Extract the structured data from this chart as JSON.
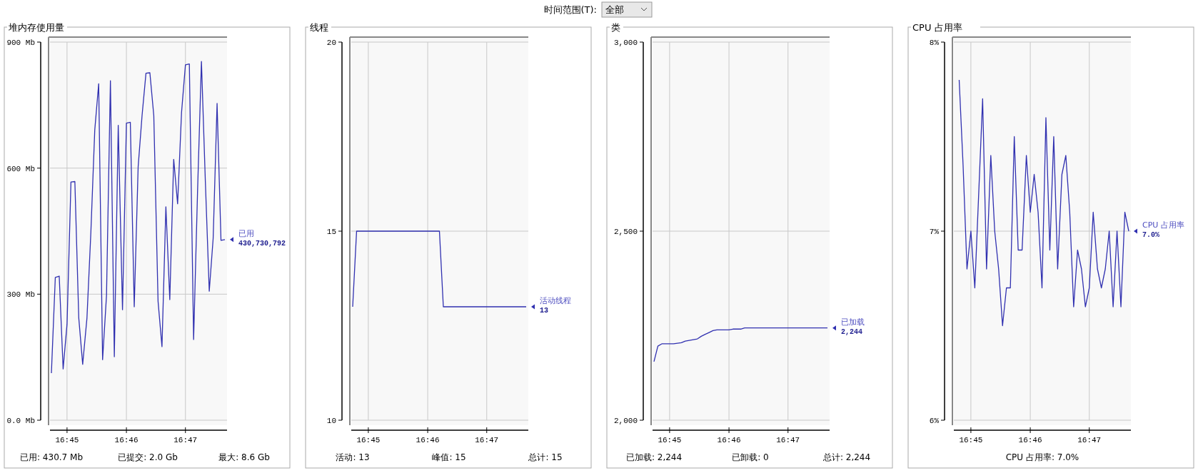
{
  "chart_data": [
    {
      "type": "other",
      "annotations": [
        "时间范围(T):",
        "全部"
      ]
    },
    {
      "type": "line",
      "title": "堆内存使用量",
      "xlim": [
        16.7452,
        16.795
      ],
      "xticks": [
        {
          "value": 16.75,
          "label": "16:45"
        },
        {
          "value": 16.7667,
          "label": "16:46"
        },
        {
          "value": 16.7833,
          "label": "16:47"
        }
      ],
      "ylim": [
        0,
        900
      ],
      "yticks": [
        {
          "value": 0,
          "label": "0.0 Mb"
        },
        {
          "value": 300,
          "label": "300 Mb"
        },
        {
          "value": 600,
          "label": "600 Mb"
        },
        {
          "value": 900,
          "label": "900 Mb"
        }
      ],
      "grid": true,
      "series": [
        {
          "name": "已用",
          "color": "#3030b0",
          "x": [
            16.7456,
            16.7467,
            16.7478,
            16.7489,
            16.75,
            16.7511,
            16.7522,
            16.7533,
            16.7544,
            16.7556,
            16.7567,
            16.7578,
            16.7589,
            16.76,
            16.7611,
            16.7622,
            16.7633,
            16.7644,
            16.7656,
            16.7667,
            16.7678,
            16.7689,
            16.77,
            16.7711,
            16.7722,
            16.7733,
            16.7744,
            16.7756,
            16.7767,
            16.7778,
            16.7789,
            16.78,
            16.7811,
            16.7822,
            16.7833,
            16.7844,
            16.7856,
            16.7867,
            16.7878,
            16.7889,
            16.79,
            16.7911,
            16.7922,
            16.7933,
            16.7944
          ],
          "values": [
            112,
            340,
            343,
            122,
            229,
            567,
            568,
            243,
            133,
            243,
            447,
            691,
            801,
            144,
            297,
            808,
            151,
            702,
            263,
            707,
            709,
            270,
            603,
            725,
            826,
            827,
            725,
            283,
            175,
            508,
            287,
            621,
            515,
            732,
            846,
            848,
            192,
            542,
            854,
            569,
            307,
            433,
            754,
            428,
            430
          ]
        }
      ],
      "annotations": [
        "430,730,792",
        "已用:  430.7  Mb",
        "已提交:  2.0  Gb",
        "最大:  8.6  Gb"
      ]
    },
    {
      "type": "line",
      "title": "线程",
      "xlim": [
        16.7452,
        16.795
      ],
      "xticks": [
        {
          "value": 16.75,
          "label": "16:45"
        },
        {
          "value": 16.7667,
          "label": "16:46"
        },
        {
          "value": 16.7833,
          "label": "16:47"
        }
      ],
      "ylim": [
        10,
        20
      ],
      "yticks": [
        10,
        15,
        20
      ],
      "grid": true,
      "series": [
        {
          "name": "活动线程",
          "color": "#3030b0",
          "x": [
            16.7456,
            16.7467,
            16.77,
            16.7711,
            16.7944
          ],
          "values": [
            13,
            15,
            15,
            13,
            13
          ]
        }
      ],
      "annotations": [
        "13",
        "活动:  13",
        "峰值:  15",
        "总计:  15"
      ]
    },
    {
      "type": "line",
      "title": "类",
      "xlim": [
        16.7452,
        16.795
      ],
      "xticks": [
        {
          "value": 16.75,
          "label": "16:45"
        },
        {
          "value": 16.7667,
          "label": "16:46"
        },
        {
          "value": 16.7833,
          "label": "16:47"
        }
      ],
      "ylim": [
        2000,
        3000
      ],
      "yticks": [
        {
          "value": 2000,
          "label": "2,000"
        },
        {
          "value": 2500,
          "label": "2,500"
        },
        {
          "value": 3000,
          "label": "3,000"
        }
      ],
      "grid": true,
      "series": [
        {
          "name": "已加载",
          "color": "#3030b0",
          "x": [
            16.7456,
            16.7467,
            16.7478,
            16.7511,
            16.7533,
            16.7544,
            16.7578,
            16.7589,
            16.76,
            16.7611,
            16.7622,
            16.7633,
            16.7667,
            16.7678,
            16.77,
            16.7711,
            16.7944
          ],
          "values": [
            2155,
            2196,
            2202,
            2202,
            2205,
            2209,
            2215,
            2222,
            2227,
            2232,
            2237,
            2239,
            2239,
            2241,
            2241,
            2244,
            2244
          ]
        }
      ],
      "annotations": [
        "2,244",
        "已加载:  2,244",
        "已卸载:  0",
        "总计:  2,244"
      ]
    },
    {
      "type": "line",
      "title": "CPU 占用率",
      "xlim": [
        16.7452,
        16.795
      ],
      "xticks": [
        {
          "value": 16.75,
          "label": "16:45"
        },
        {
          "value": 16.7667,
          "label": "16:46"
        },
        {
          "value": 16.7833,
          "label": "16:47"
        }
      ],
      "ylim": [
        6,
        8
      ],
      "yticks": [
        {
          "value": 6,
          "label": "6%"
        },
        {
          "value": 7,
          "label": "7%"
        },
        {
          "value": 8,
          "label": "8%"
        }
      ],
      "grid": true,
      "series": [
        {
          "name": "CPU 占用率",
          "color": "#3030b0",
          "x": [
            16.7467,
            16.7478,
            16.7489,
            16.75,
            16.7511,
            16.7522,
            16.7533,
            16.7544,
            16.7556,
            16.7567,
            16.7578,
            16.7589,
            16.76,
            16.7611,
            16.7622,
            16.7633,
            16.7644,
            16.7656,
            16.7667,
            16.7678,
            16.7689,
            16.77,
            16.7711,
            16.7722,
            16.7733,
            16.7744,
            16.7756,
            16.7767,
            16.7778,
            16.7789,
            16.78,
            16.7811,
            16.7822,
            16.7833,
            16.7844,
            16.7856,
            16.7867,
            16.7878,
            16.7889,
            16.79,
            16.7911,
            16.7922,
            16.7933,
            16.7944
          ],
          "values": [
            7.8,
            7.35,
            6.8,
            7.0,
            6.7,
            7.2,
            7.7,
            6.8,
            7.4,
            7.0,
            6.8,
            6.5,
            6.7,
            6.7,
            7.5,
            6.9,
            6.9,
            7.4,
            7.1,
            7.3,
            7.1,
            6.7,
            7.6,
            6.9,
            7.5,
            6.8,
            7.3,
            7.4,
            7.1,
            6.6,
            6.9,
            6.8,
            6.6,
            6.7,
            7.1,
            6.8,
            6.7,
            6.8,
            7.0,
            6.6,
            7.0,
            6.6,
            7.1,
            7.0
          ]
        }
      ],
      "annotations": [
        "7.0%",
        "CPU 占用率:  7.0%"
      ]
    }
  ]
}
